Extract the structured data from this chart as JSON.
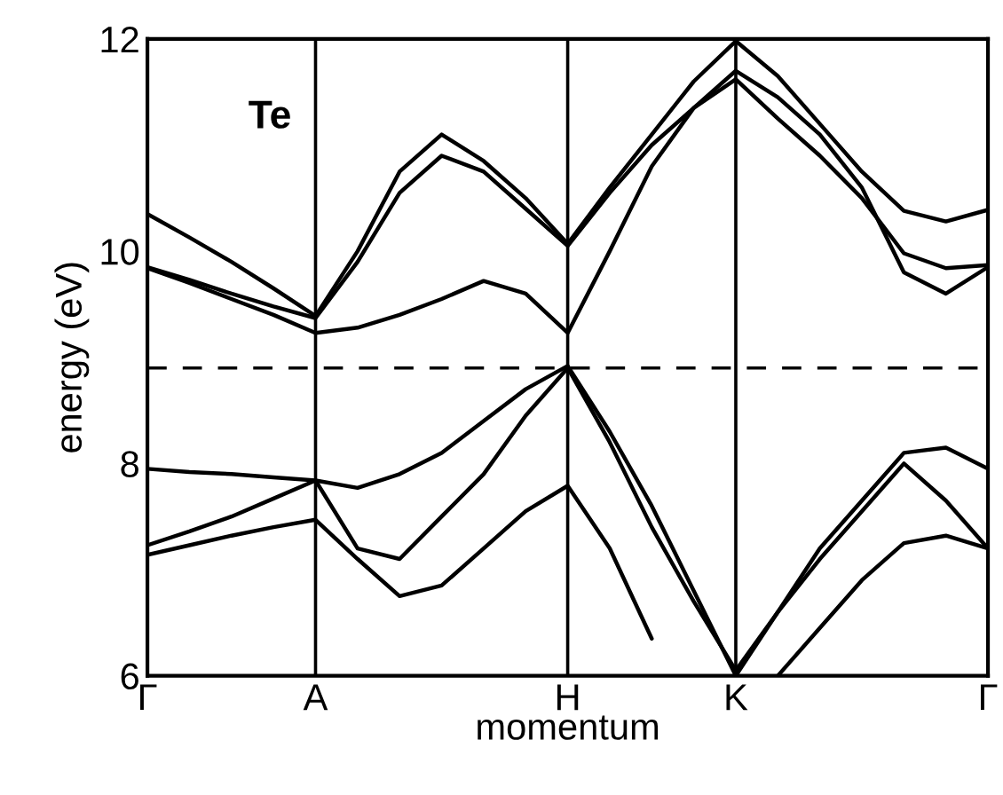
{
  "chart_data": {
    "type": "line",
    "xlabel": "momentum",
    "ylabel": "energy (eV)",
    "annotations": [
      "Te"
    ],
    "categories": [
      "Γ",
      null,
      null,
      null,
      "A",
      null,
      null,
      null,
      null,
      null,
      "H",
      null,
      null,
      null,
      "K",
      null,
      null,
      null,
      null,
      null,
      "Γ"
    ],
    "ylim": [
      6,
      12
    ],
    "yticks": [
      6,
      8,
      10,
      12
    ],
    "grid": "x",
    "legend": false,
    "marker": "none",
    "line_style": "solid",
    "ref_lines": [
      {
        "axis": "y",
        "value": 8.9,
        "label": null,
        "color": "#000000",
        "line_style": "dashed"
      }
    ],
    "series": [
      {
        "color": "#000000",
        "values": [
          10.35,
          10.13,
          9.9,
          9.65,
          9.39,
          10.0,
          10.75,
          11.1,
          10.85,
          10.5,
          10.07,
          10.6,
          11.1,
          11.6,
          11.98,
          11.65,
          11.2,
          10.75,
          10.38,
          10.28,
          10.39
        ]
      },
      {
        "color": "#000000",
        "values": [
          9.85,
          9.73,
          9.6,
          9.48,
          9.37,
          9.9,
          10.55,
          10.9,
          10.75,
          10.4,
          10.05,
          10.55,
          11.0,
          11.35,
          11.62,
          11.25,
          10.9,
          10.5,
          9.98,
          9.84,
          9.87
        ]
      },
      {
        "color": "#000000",
        "values": [
          9.84,
          9.7,
          9.55,
          9.4,
          9.23,
          9.28,
          9.4,
          9.55,
          9.72,
          9.6,
          9.23,
          10.0,
          10.8,
          11.35,
          11.7,
          11.45,
          11.1,
          10.6,
          9.8,
          9.6,
          9.85
        ]
      },
      {
        "color": "#000000",
        "values": [
          7.95,
          7.92,
          7.9,
          7.87,
          7.84,
          7.77,
          7.9,
          8.1,
          8.4,
          8.7,
          8.92,
          8.3,
          7.6,
          6.8,
          6.0,
          6.6,
          7.2,
          7.65,
          8.1,
          8.15,
          7.95
        ]
      },
      {
        "color": "#000000",
        "values": [
          7.23,
          7.36,
          7.5,
          7.67,
          7.84,
          7.2,
          7.1,
          7.5,
          7.9,
          8.45,
          8.9,
          8.2,
          7.4,
          6.7,
          6.05,
          6.6,
          7.1,
          7.55,
          8.0,
          7.65,
          7.2
        ]
      },
      {
        "color": "#000000",
        "values": [
          7.14,
          7.23,
          7.32,
          7.4,
          7.47,
          7.1,
          6.75,
          6.85,
          7.2,
          7.55,
          7.79,
          7.2,
          6.35,
          null,
          null,
          6.0,
          6.45,
          6.9,
          7.25,
          7.32,
          7.2
        ]
      }
    ]
  }
}
